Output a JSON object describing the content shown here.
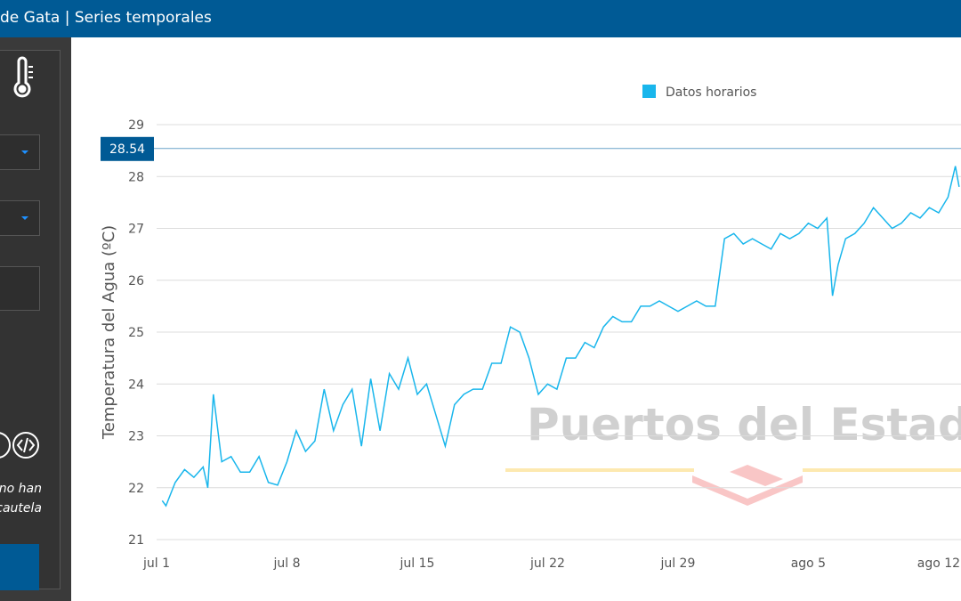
{
  "header": {
    "title": "de Gata | Series temporales"
  },
  "sidebar": {
    "notice": [
      "no han",
      "cautela"
    ]
  },
  "chart_data": {
    "type": "line",
    "ylabel": "Temperatura del Agua (ºC)",
    "watermark": "Puertos del Estado",
    "reference_value": 28.54,
    "x": [
      0.3,
      0.5,
      1,
      1.5,
      2,
      2.5,
      2.75,
      3.05,
      3.5,
      4,
      4.5,
      5,
      5.5,
      6,
      6.5,
      7,
      7.5,
      8,
      8.5,
      9,
      9.5,
      10,
      10.5,
      11,
      11.5,
      12,
      12.5,
      13,
      13.5,
      14,
      14.5,
      15,
      15.5,
      16,
      16.5,
      17,
      17.5,
      18,
      18.5,
      19,
      19.5,
      20,
      20.5,
      21,
      21.5,
      22,
      22.5,
      23,
      23.5,
      24,
      24.5,
      25,
      25.5,
      26,
      26.5,
      27,
      27.5,
      28,
      28.5,
      29,
      29.5,
      30,
      30.5,
      31,
      31.5,
      32,
      32.5,
      33,
      33.5,
      34,
      34.5,
      35,
      35.5,
      36,
      36.3,
      36.6,
      37,
      37.5,
      38,
      38.5,
      39,
      39.5,
      40,
      40.5,
      41,
      41.5,
      42,
      42.5,
      42.9,
      43.1
    ],
    "series": [
      {
        "name": "Datos horarios",
        "color": "#19b6ec",
        "values": [
          21.75,
          21.65,
          22.1,
          22.35,
          22.2,
          22.4,
          22.0,
          23.8,
          22.5,
          22.6,
          22.3,
          22.3,
          22.6,
          22.1,
          22.05,
          22.5,
          23.1,
          22.7,
          22.9,
          23.9,
          23.1,
          23.6,
          23.9,
          22.8,
          24.1,
          23.1,
          24.2,
          23.9,
          24.5,
          23.8,
          24.0,
          23.4,
          22.8,
          23.6,
          23.8,
          23.9,
          23.9,
          24.4,
          24.4,
          25.1,
          25.0,
          24.5,
          23.8,
          24.0,
          23.9,
          24.5,
          24.5,
          24.8,
          24.7,
          25.1,
          25.3,
          25.2,
          25.2,
          25.5,
          25.5,
          25.6,
          25.5,
          25.4,
          25.5,
          25.6,
          25.5,
          25.5,
          26.8,
          26.9,
          26.7,
          26.8,
          26.7,
          26.6,
          26.9,
          26.8,
          26.9,
          27.1,
          27.0,
          27.2,
          25.7,
          26.3,
          26.8,
          26.9,
          27.1,
          27.4,
          27.2,
          27.0,
          27.1,
          27.3,
          27.2,
          27.4,
          27.3,
          27.6,
          28.2,
          27.8
        ]
      }
    ],
    "xlim": [
      0,
      43.2
    ],
    "xticks": [
      {
        "value": 0,
        "label": "jul 1"
      },
      {
        "value": 7,
        "label": "jul 8"
      },
      {
        "value": 14,
        "label": "jul 15"
      },
      {
        "value": 21,
        "label": "jul 22"
      },
      {
        "value": 28,
        "label": "jul 29"
      },
      {
        "value": 35,
        "label": "ago 5"
      },
      {
        "value": 42,
        "label": "ago 12"
      }
    ],
    "ylim": [
      21,
      29
    ],
    "yticks": [
      21,
      22,
      23,
      24,
      25,
      26,
      27,
      28,
      29
    ],
    "grid": true,
    "legend": "top"
  }
}
